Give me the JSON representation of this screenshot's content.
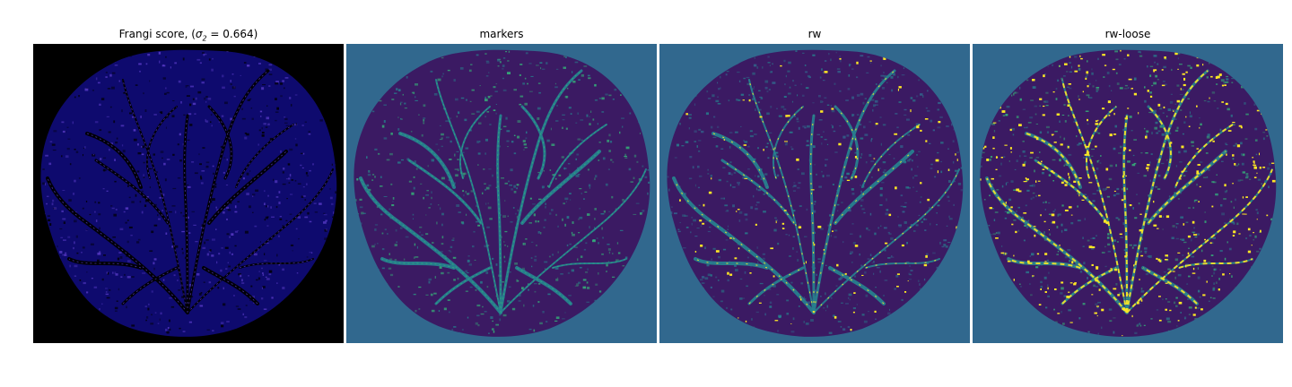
{
  "panels": [
    {
      "title_prefix": "Frangi score, (",
      "title_sym": "σ",
      "title_sub": "2",
      "title_suffix": " = 0.664)",
      "background": "#000000",
      "blob": "#0e0a6e",
      "vessel": "#000000",
      "accent": "#5a3cc8",
      "highlight": null
    },
    {
      "title": "markers",
      "background": "#31688e",
      "blob": "#3b1a63",
      "vessel": "#26828e",
      "accent": "#35b779",
      "highlight": null
    },
    {
      "title": "rw",
      "background": "#31688e",
      "blob": "#3b1a63",
      "vessel": "#26828e",
      "accent": "#31688e",
      "highlight": "#fde725"
    },
    {
      "title": "rw-loose",
      "background": "#31688e",
      "blob": "#3b1a63",
      "vessel": "#2a7a8c",
      "accent": "#35b779",
      "highlight": "#fde725"
    }
  ]
}
